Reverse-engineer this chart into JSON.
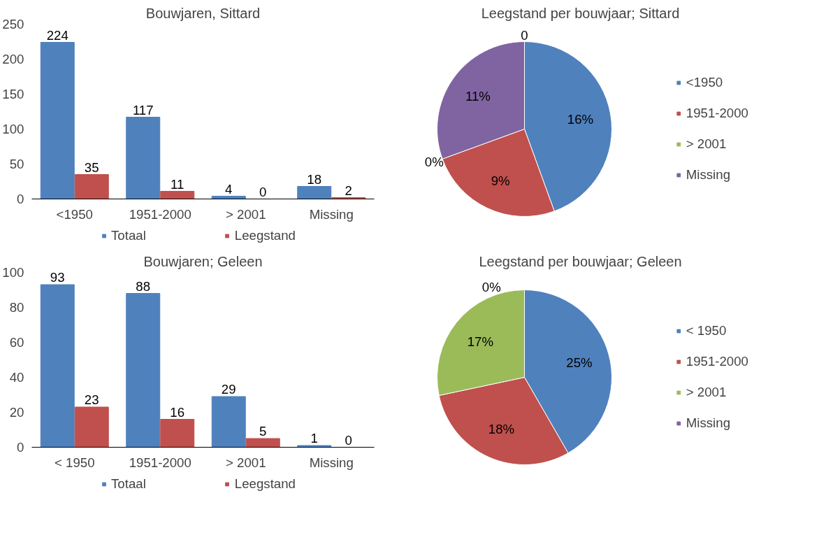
{
  "chart_data": [
    {
      "type": "bar",
      "title": "Bouwjaren, Sittard",
      "categories": [
        "<1950",
        "1951-2000",
        "> 2001",
        "Missing"
      ],
      "series": [
        {
          "name": "Totaal",
          "color": "#4f81bd",
          "values": [
            224,
            117,
            4,
            18
          ]
        },
        {
          "name": "Leegstand",
          "color": "#c0504d",
          "values": [
            35,
            11,
            0,
            2
          ]
        }
      ],
      "ylim": [
        0,
        250
      ],
      "yticks": [
        0,
        50,
        100,
        150,
        200,
        250
      ],
      "grid": false,
      "legend": "bottom",
      "data_labels": true
    },
    {
      "type": "pie",
      "title": "Leegstand per bouwjaar; Sittard",
      "categories": [
        "<1950",
        "1951-2000",
        "> 2001",
        "Missing"
      ],
      "values": [
        16,
        9,
        0,
        11
      ],
      "colors": [
        "#4f81bd",
        "#c0504d",
        "#9bbb59",
        "#8064a2"
      ],
      "value_labels": [
        "16%",
        "9%",
        "0%",
        "11%"
      ],
      "annotations": [
        "0"
      ],
      "legend": "right"
    },
    {
      "type": "bar",
      "title": "Bouwjaren; Geleen",
      "categories": [
        "< 1950",
        "1951-2000",
        "> 2001",
        "Missing"
      ],
      "series": [
        {
          "name": "Totaal",
          "color": "#4f81bd",
          "values": [
            93,
            88,
            29,
            1
          ]
        },
        {
          "name": "Leegstand",
          "color": "#c0504d",
          "values": [
            23,
            16,
            5,
            0
          ]
        }
      ],
      "ylim": [
        0,
        100
      ],
      "yticks": [
        0,
        20,
        40,
        60,
        80,
        100
      ],
      "grid": false,
      "legend": "bottom",
      "data_labels": true
    },
    {
      "type": "pie",
      "title": "Leegstand per bouwjaar; Geleen",
      "categories": [
        "< 1950",
        "1951-2000",
        "> 2001",
        "Missing"
      ],
      "values": [
        25,
        18,
        17,
        0
      ],
      "colors": [
        "#4f81bd",
        "#c0504d",
        "#9bbb59",
        "#8064a2"
      ],
      "value_labels": [
        "25%",
        "18%",
        "17%",
        "0%"
      ],
      "legend": "right"
    }
  ]
}
